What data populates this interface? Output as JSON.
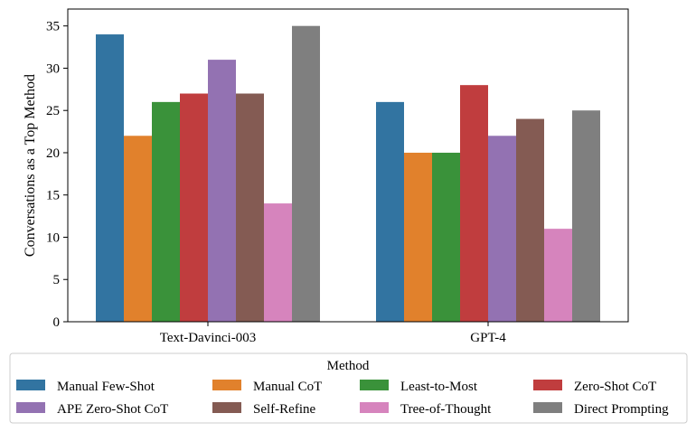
{
  "chart_data": {
    "type": "bar",
    "categories": [
      "Text-Davinci-003",
      "GPT-4"
    ],
    "ylabel": "Conversations as a Top Method",
    "xlabel": "",
    "ylim": [
      0,
      37
    ],
    "yticks": [
      0,
      5,
      10,
      15,
      20,
      25,
      30,
      35
    ],
    "legend": {
      "title": "Method",
      "placement": "bottom",
      "columns": 4
    },
    "grid": false,
    "series": [
      {
        "name": "Manual Few-Shot",
        "color": "#3274a1",
        "values": [
          34,
          26
        ]
      },
      {
        "name": "Manual CoT",
        "color": "#e1812c",
        "values": [
          22,
          20
        ]
      },
      {
        "name": "Least-to-Most",
        "color": "#3a923a",
        "values": [
          26,
          20
        ]
      },
      {
        "name": "Zero-Shot CoT",
        "color": "#c03d3e",
        "values": [
          27,
          28
        ]
      },
      {
        "name": "APE Zero-Shot CoT",
        "color": "#9372b2",
        "values": [
          31,
          22
        ]
      },
      {
        "name": "Self-Refine",
        "color": "#845b53",
        "values": [
          27,
          24
        ]
      },
      {
        "name": "Tree-of-Thought",
        "color": "#d684bd",
        "values": [
          14,
          11
        ]
      },
      {
        "name": "Direct Prompting",
        "color": "#7f7f7f",
        "values": [
          35,
          25
        ]
      }
    ]
  }
}
